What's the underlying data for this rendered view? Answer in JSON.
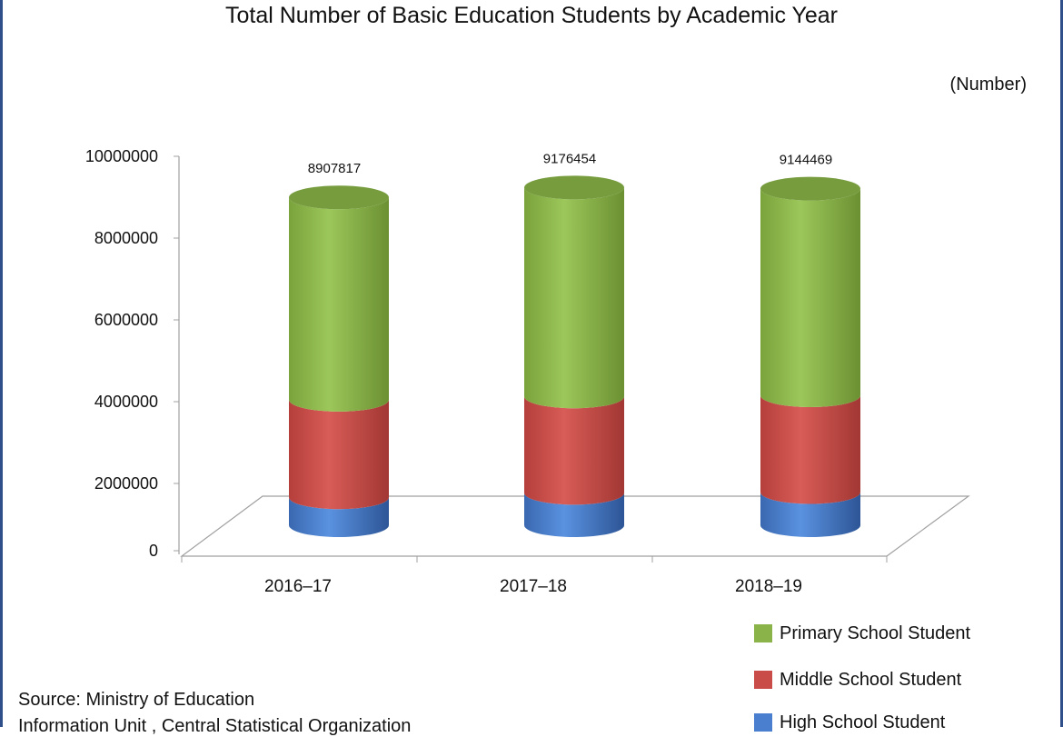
{
  "chart_data": {
    "type": "bar",
    "stacked": true,
    "title": "Total Number of Basic Education Students by Academic Year",
    "unit": "(Number)",
    "categories": [
      "2016–17",
      "2017–18",
      "2018–19"
    ],
    "totals": [
      "8907817",
      "9176454",
      "9144469"
    ],
    "series": [
      {
        "name": "High School Student",
        "color": "#4a7fcf",
        "values": [
          760000,
          880000,
          900000
        ]
      },
      {
        "name": "Middle School Student",
        "color": "#c94c48",
        "values": [
          2650000,
          2620000,
          2630000
        ]
      },
      {
        "name": "Primary School Student",
        "color": "#8ab34a",
        "values": [
          5497817,
          5676454,
          5614469
        ]
      }
    ],
    "yticks": [
      "0",
      "2000000",
      "4000000",
      "6000000",
      "8000000",
      "10000000"
    ],
    "ylim": [
      0,
      10000000
    ],
    "legend_position": "bottom-right"
  },
  "footer": {
    "source": "Source: Ministry of Education",
    "unit_line": "Information Unit , Central Statistical Organization"
  }
}
